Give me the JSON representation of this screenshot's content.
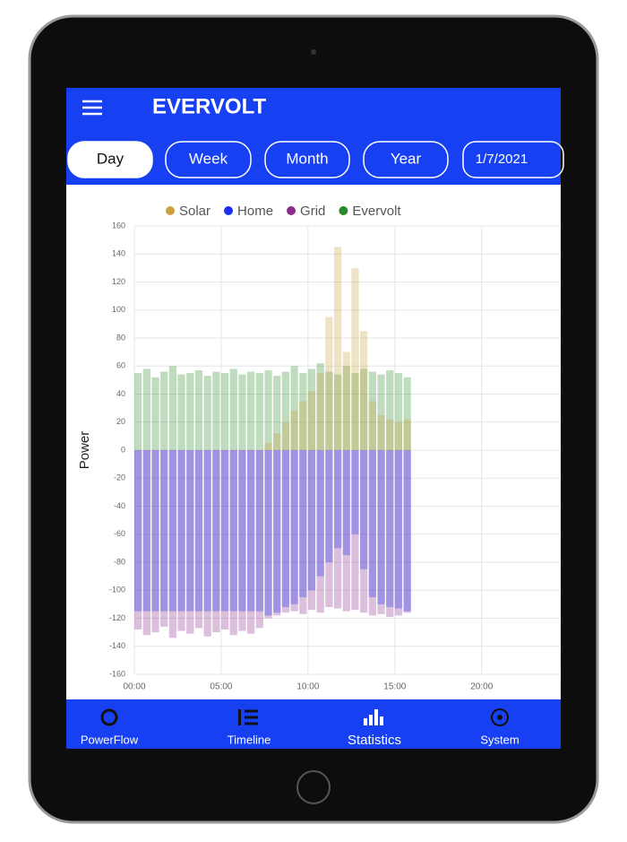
{
  "header": {
    "logo": "EVERVOLT"
  },
  "tabs": [
    "Day",
    "Week",
    "Month",
    "Year"
  ],
  "date": "1/7/2021",
  "chart_data": {
    "type": "bar",
    "y_label": "Power",
    "x": [
      0,
      0.5,
      1,
      1.5,
      2,
      2.5,
      3,
      3.5,
      4,
      4.5,
      5,
      5.5,
      6,
      6.5,
      7,
      7.5,
      8,
      8.5,
      9,
      9.5,
      10,
      10.5,
      11,
      11.5,
      12,
      12.5,
      13,
      13.5,
      14,
      14.5,
      15,
      15.5
    ],
    "series": [
      {
        "name": "Solar",
        "color": "#c9a23f",
        "values": [
          0,
          0,
          0,
          0,
          0,
          0,
          0,
          0,
          0,
          0,
          0,
          0,
          0,
          0,
          0,
          5,
          12,
          20,
          28,
          35,
          42,
          55,
          95,
          145,
          70,
          130,
          85,
          35,
          25,
          22,
          20,
          22
        ]
      },
      {
        "name": "Home",
        "color": "#1b2ff0",
        "values": [
          -115,
          -115,
          -115,
          -115,
          -115,
          -115,
          -115,
          -115,
          -115,
          -115,
          -115,
          -115,
          -115,
          -115,
          -115,
          -118,
          -116,
          -112,
          -110,
          -105,
          -100,
          -90,
          -80,
          -70,
          -75,
          -60,
          -85,
          -105,
          -110,
          -112,
          -113,
          -115
        ]
      },
      {
        "name": "Grid",
        "color": "#8b2b8b",
        "values": [
          -128,
          -132,
          -130,
          -126,
          -134,
          -129,
          -131,
          -127,
          -133,
          -130,
          -128,
          -132,
          -129,
          -131,
          -127,
          -120,
          -118,
          -116,
          -115,
          -117,
          -114,
          -116,
          -112,
          -113,
          -115,
          -114,
          -116,
          -118,
          -117,
          -119,
          -118,
          -116
        ]
      },
      {
        "name": "Evervolt",
        "color": "#2a8a2a",
        "values": [
          55,
          58,
          52,
          56,
          60,
          54,
          55,
          57,
          53,
          56,
          55,
          58,
          54,
          56,
          55,
          57,
          53,
          56,
          60,
          55,
          58,
          62,
          56,
          54,
          60,
          55,
          58,
          56,
          54,
          57,
          55,
          52
        ]
      }
    ],
    "ylim": [
      -160,
      160
    ],
    "yticks": [
      -160,
      -140,
      -120,
      -100,
      -80,
      -60,
      -40,
      -20,
      0,
      20,
      40,
      60,
      80,
      100,
      120,
      140,
      160
    ],
    "xlim": [
      0,
      24.5
    ],
    "xticks": [
      {
        "value": 0,
        "label": "00:00"
      },
      {
        "value": 5,
        "label": "05:00"
      },
      {
        "value": 10,
        "label": "10:00"
      },
      {
        "value": 15,
        "label": "15:00"
      },
      {
        "value": 20,
        "label": "20:00"
      }
    ],
    "grid": true,
    "legend": "top"
  },
  "nav": [
    "PowerFlow",
    "Timeline",
    "Statistics",
    "System"
  ]
}
